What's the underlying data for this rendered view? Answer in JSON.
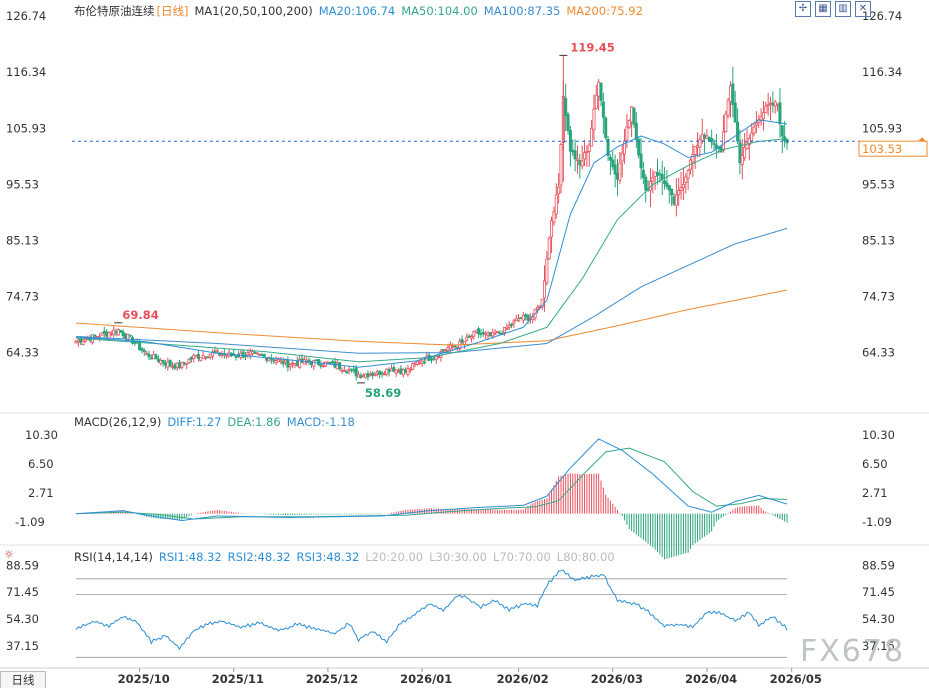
{
  "header": {
    "instrument": "布伦特原油连续",
    "period": "[日线]",
    "ma_label": "MA1(20,50,100,200)",
    "ma20": "MA20:106.74",
    "ma50": "MA50:104.00",
    "ma100": "MA100:87.35",
    "ma200": "MA200:75.92"
  },
  "macd_header": {
    "label": "MACD(26,12,9)",
    "diff": "DIFF:1.27",
    "dea": "DEA:1.86",
    "macd": "MACD:-1.18"
  },
  "rsi_header": {
    "label": "RSI(14,14,14)",
    "rsi1": "RSI1:48.32",
    "rsi2": "RSI2:48.32",
    "rsi3": "RSI3:48.32",
    "l20": "L20:20.00",
    "l30": "L30:30.00",
    "l70": "L70:70.00",
    "l80": "L80:80.00"
  },
  "bottom_tab": "日线",
  "watermark": "FX678",
  "toolbar_icons": [
    "crosshair-icon",
    "grid-icon",
    "bar-icon",
    "close-icon"
  ],
  "colors": {
    "up": "#e8505b",
    "down": "#28a47a",
    "ma20": "#2c8fd6",
    "ma50": "#35a88a",
    "ma100": "#3a8ed0",
    "ma200": "#f08a2e",
    "current": "#2c6fd6",
    "axis": "#333333"
  },
  "chart_data": [
    {
      "type": "candlestick",
      "name": "price",
      "y_ticks": [
        64.33,
        74.73,
        85.13,
        95.53,
        105.93,
        116.34,
        126.74
      ],
      "ylim": [
        57.0,
        127.5
      ],
      "x_ticks": [
        "2025/10",
        "2025/11",
        "2025/12",
        "2026/01",
        "2026/02",
        "2026/03",
        "2026/04",
        "2026/05"
      ],
      "annotations": {
        "high": "119.45",
        "low": "58.69",
        "local_high": "69.84"
      },
      "current_price": 103.53,
      "current_label": "103.53",
      "anchors_close": [
        [
          0,
          66.4
        ],
        [
          10,
          67.5
        ],
        [
          18,
          68.5
        ],
        [
          24,
          66.5
        ],
        [
          30,
          64.0
        ],
        [
          40,
          62.0
        ],
        [
          44,
          61.8
        ],
        [
          50,
          63.5
        ],
        [
          58,
          64.2
        ],
        [
          66,
          63.8
        ],
        [
          74,
          64.0
        ],
        [
          82,
          63.4
        ],
        [
          90,
          62.2
        ],
        [
          98,
          62.6
        ],
        [
          106,
          62.3
        ],
        [
          114,
          61.5
        ],
        [
          120,
          60.2
        ],
        [
          128,
          60.5
        ],
        [
          134,
          61.4
        ],
        [
          140,
          60.7
        ],
        [
          146,
          62.8
        ],
        [
          152,
          63.6
        ],
        [
          158,
          65.2
        ],
        [
          164,
          66.0
        ],
        [
          170,
          68.0
        ],
        [
          176,
          67.3
        ],
        [
          182,
          68.4
        ],
        [
          188,
          70.6
        ],
        [
          194,
          71.0
        ],
        [
          198,
          74.0
        ],
        [
          200,
          82.0
        ],
        [
          202,
          89.0
        ],
        [
          205,
          95.0
        ],
        [
          207,
          112.0
        ],
        [
          210,
          102.0
        ],
        [
          214,
          99.0
        ],
        [
          218,
          103.0
        ],
        [
          222,
          115.0
        ],
        [
          226,
          101.0
        ],
        [
          230,
          97.0
        ],
        [
          236,
          110.0
        ],
        [
          238,
          104.0
        ],
        [
          242,
          94.0
        ],
        [
          246,
          98.0
        ],
        [
          250,
          96.0
        ],
        [
          254,
          92.0
        ],
        [
          258,
          96.0
        ],
        [
          262,
          101.0
        ],
        [
          266,
          105.0
        ],
        [
          270,
          103.0
        ],
        [
          274,
          102.0
        ],
        [
          278,
          114.0
        ],
        [
          282,
          100.0
        ],
        [
          286,
          104.0
        ],
        [
          290,
          108.0
        ],
        [
          294,
          110.0
        ],
        [
          298,
          110.5
        ],
        [
          300,
          104.0
        ],
        [
          302,
          103.53
        ]
      ],
      "ma20_anchors": [
        [
          0,
          67.2
        ],
        [
          30,
          66.3
        ],
        [
          60,
          64.2
        ],
        [
          90,
          63.0
        ],
        [
          120,
          61.6
        ],
        [
          145,
          62.8
        ],
        [
          170,
          66.1
        ],
        [
          190,
          69.0
        ],
        [
          200,
          74.0
        ],
        [
          210,
          90.0
        ],
        [
          220,
          99.5
        ],
        [
          230,
          102.5
        ],
        [
          240,
          104.5
        ],
        [
          250,
          103.0
        ],
        [
          260,
          100.5
        ],
        [
          270,
          101.5
        ],
        [
          280,
          104.5
        ],
        [
          290,
          107.5
        ],
        [
          302,
          106.74
        ]
      ],
      "ma50_anchors": [
        [
          0,
          67.0
        ],
        [
          40,
          65.8
        ],
        [
          80,
          64.5
        ],
        [
          120,
          62.6
        ],
        [
          150,
          63.4
        ],
        [
          180,
          66.0
        ],
        [
          200,
          69.0
        ],
        [
          215,
          78.0
        ],
        [
          230,
          89.0
        ],
        [
          245,
          95.5
        ],
        [
          260,
          99.0
        ],
        [
          275,
          102.0
        ],
        [
          290,
          103.5
        ],
        [
          302,
          104.0
        ]
      ],
      "ma100_anchors": [
        [
          0,
          67.3
        ],
        [
          60,
          66.0
        ],
        [
          120,
          64.2
        ],
        [
          160,
          64.3
        ],
        [
          200,
          66.0
        ],
        [
          220,
          71.0
        ],
        [
          240,
          76.5
        ],
        [
          260,
          80.5
        ],
        [
          280,
          84.5
        ],
        [
          302,
          87.35
        ]
      ],
      "ma200_anchors": [
        [
          0,
          69.8
        ],
        [
          60,
          68.0
        ],
        [
          120,
          66.4
        ],
        [
          160,
          65.7
        ],
        [
          200,
          66.5
        ],
        [
          230,
          69.3
        ],
        [
          260,
          72.3
        ],
        [
          280,
          74.0
        ],
        [
          302,
          75.92
        ]
      ]
    },
    {
      "type": "macd",
      "y_ticks": [
        -1.09,
        2.71,
        6.5,
        10.3
      ],
      "ylim": [
        -4.5,
        11.5
      ],
      "diff_anchors": [
        [
          0,
          0.0
        ],
        [
          20,
          0.4
        ],
        [
          30,
          -0.2
        ],
        [
          45,
          -0.9
        ],
        [
          60,
          -0.3
        ],
        [
          90,
          -0.5
        ],
        [
          130,
          -0.3
        ],
        [
          150,
          0.4
        ],
        [
          170,
          0.8
        ],
        [
          190,
          1.1
        ],
        [
          200,
          2.3
        ],
        [
          210,
          6.0
        ],
        [
          222,
          9.8
        ],
        [
          232,
          8.3
        ],
        [
          245,
          5.2
        ],
        [
          260,
          1.0
        ],
        [
          270,
          0.2
        ],
        [
          280,
          1.6
        ],
        [
          290,
          2.4
        ],
        [
          302,
          1.27
        ]
      ],
      "dea_anchors": [
        [
          0,
          0.0
        ],
        [
          20,
          0.2
        ],
        [
          35,
          -0.1
        ],
        [
          50,
          -0.7
        ],
        [
          70,
          -0.4
        ],
        [
          100,
          -0.4
        ],
        [
          140,
          -0.2
        ],
        [
          160,
          0.3
        ],
        [
          180,
          0.7
        ],
        [
          195,
          0.9
        ],
        [
          205,
          1.7
        ],
        [
          215,
          5.0
        ],
        [
          225,
          8.1
        ],
        [
          235,
          8.6
        ],
        [
          250,
          6.8
        ],
        [
          262,
          2.9
        ],
        [
          272,
          1.0
        ],
        [
          282,
          1.3
        ],
        [
          292,
          2.0
        ],
        [
          302,
          1.86
        ]
      ]
    },
    {
      "type": "rsi",
      "y_ticks": [
        37.15,
        54.3,
        71.45,
        88.59
      ],
      "ylim": [
        27.0,
        92.0
      ],
      "levels": [
        20,
        30,
        70,
        80
      ],
      "rsi_anchors": [
        [
          0,
          48.0
        ],
        [
          8,
          53.0
        ],
        [
          14,
          50.0
        ],
        [
          20,
          56.0
        ],
        [
          26,
          52.0
        ],
        [
          32,
          40.0
        ],
        [
          38,
          44.0
        ],
        [
          44,
          36.0
        ],
        [
          50,
          47.0
        ],
        [
          56,
          51.0
        ],
        [
          62,
          53.0
        ],
        [
          70,
          49.0
        ],
        [
          78,
          52.0
        ],
        [
          86,
          47.0
        ],
        [
          94,
          51.0
        ],
        [
          102,
          48.0
        ],
        [
          110,
          45.0
        ],
        [
          116,
          52.0
        ],
        [
          120,
          41.0
        ],
        [
          126,
          47.0
        ],
        [
          132,
          40.0
        ],
        [
          138,
          52.0
        ],
        [
          144,
          57.0
        ],
        [
          150,
          64.0
        ],
        [
          156,
          60.0
        ],
        [
          162,
          69.0
        ],
        [
          166,
          68.0
        ],
        [
          172,
          62.0
        ],
        [
          178,
          66.0
        ],
        [
          184,
          60.0
        ],
        [
          190,
          64.0
        ],
        [
          196,
          63.0
        ],
        [
          200,
          76.0
        ],
        [
          206,
          86.0
        ],
        [
          212,
          79.0
        ],
        [
          218,
          81.0
        ],
        [
          224,
          83.0
        ],
        [
          230,
          66.0
        ],
        [
          238,
          64.0
        ],
        [
          244,
          58.0
        ],
        [
          250,
          50.0
        ],
        [
          256,
          51.0
        ],
        [
          262,
          49.0
        ],
        [
          268,
          59.0
        ],
        [
          274,
          58.0
        ],
        [
          280,
          53.0
        ],
        [
          286,
          59.0
        ],
        [
          290,
          50.0
        ],
        [
          296,
          56.0
        ],
        [
          300,
          51.0
        ],
        [
          302,
          48.32
        ]
      ]
    }
  ]
}
